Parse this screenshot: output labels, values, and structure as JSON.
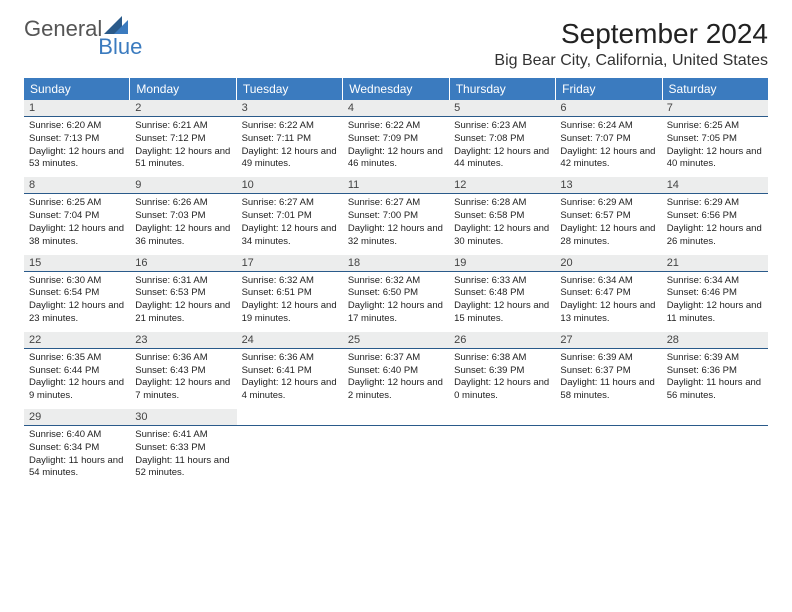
{
  "brand": {
    "part1": "General",
    "part2": "Blue"
  },
  "title": "September 2024",
  "location": "Big Bear City, California, United States",
  "colors": {
    "header_bg": "#3b7bbf",
    "band_bg": "#eceded",
    "rule": "#2a5a8a"
  },
  "weekdays": [
    "Sunday",
    "Monday",
    "Tuesday",
    "Wednesday",
    "Thursday",
    "Friday",
    "Saturday"
  ],
  "weeks": [
    [
      {
        "n": "1",
        "sunrise": "6:20 AM",
        "sunset": "7:13 PM",
        "dl": "12 hours and 53 minutes."
      },
      {
        "n": "2",
        "sunrise": "6:21 AM",
        "sunset": "7:12 PM",
        "dl": "12 hours and 51 minutes."
      },
      {
        "n": "3",
        "sunrise": "6:22 AM",
        "sunset": "7:11 PM",
        "dl": "12 hours and 49 minutes."
      },
      {
        "n": "4",
        "sunrise": "6:22 AM",
        "sunset": "7:09 PM",
        "dl": "12 hours and 46 minutes."
      },
      {
        "n": "5",
        "sunrise": "6:23 AM",
        "sunset": "7:08 PM",
        "dl": "12 hours and 44 minutes."
      },
      {
        "n": "6",
        "sunrise": "6:24 AM",
        "sunset": "7:07 PM",
        "dl": "12 hours and 42 minutes."
      },
      {
        "n": "7",
        "sunrise": "6:25 AM",
        "sunset": "7:05 PM",
        "dl": "12 hours and 40 minutes."
      }
    ],
    [
      {
        "n": "8",
        "sunrise": "6:25 AM",
        "sunset": "7:04 PM",
        "dl": "12 hours and 38 minutes."
      },
      {
        "n": "9",
        "sunrise": "6:26 AM",
        "sunset": "7:03 PM",
        "dl": "12 hours and 36 minutes."
      },
      {
        "n": "10",
        "sunrise": "6:27 AM",
        "sunset": "7:01 PM",
        "dl": "12 hours and 34 minutes."
      },
      {
        "n": "11",
        "sunrise": "6:27 AM",
        "sunset": "7:00 PM",
        "dl": "12 hours and 32 minutes."
      },
      {
        "n": "12",
        "sunrise": "6:28 AM",
        "sunset": "6:58 PM",
        "dl": "12 hours and 30 minutes."
      },
      {
        "n": "13",
        "sunrise": "6:29 AM",
        "sunset": "6:57 PM",
        "dl": "12 hours and 28 minutes."
      },
      {
        "n": "14",
        "sunrise": "6:29 AM",
        "sunset": "6:56 PM",
        "dl": "12 hours and 26 minutes."
      }
    ],
    [
      {
        "n": "15",
        "sunrise": "6:30 AM",
        "sunset": "6:54 PM",
        "dl": "12 hours and 23 minutes."
      },
      {
        "n": "16",
        "sunrise": "6:31 AM",
        "sunset": "6:53 PM",
        "dl": "12 hours and 21 minutes."
      },
      {
        "n": "17",
        "sunrise": "6:32 AM",
        "sunset": "6:51 PM",
        "dl": "12 hours and 19 minutes."
      },
      {
        "n": "18",
        "sunrise": "6:32 AM",
        "sunset": "6:50 PM",
        "dl": "12 hours and 17 minutes."
      },
      {
        "n": "19",
        "sunrise": "6:33 AM",
        "sunset": "6:48 PM",
        "dl": "12 hours and 15 minutes."
      },
      {
        "n": "20",
        "sunrise": "6:34 AM",
        "sunset": "6:47 PM",
        "dl": "12 hours and 13 minutes."
      },
      {
        "n": "21",
        "sunrise": "6:34 AM",
        "sunset": "6:46 PM",
        "dl": "12 hours and 11 minutes."
      }
    ],
    [
      {
        "n": "22",
        "sunrise": "6:35 AM",
        "sunset": "6:44 PM",
        "dl": "12 hours and 9 minutes."
      },
      {
        "n": "23",
        "sunrise": "6:36 AM",
        "sunset": "6:43 PM",
        "dl": "12 hours and 7 minutes."
      },
      {
        "n": "24",
        "sunrise": "6:36 AM",
        "sunset": "6:41 PM",
        "dl": "12 hours and 4 minutes."
      },
      {
        "n": "25",
        "sunrise": "6:37 AM",
        "sunset": "6:40 PM",
        "dl": "12 hours and 2 minutes."
      },
      {
        "n": "26",
        "sunrise": "6:38 AM",
        "sunset": "6:39 PM",
        "dl": "12 hours and 0 minutes."
      },
      {
        "n": "27",
        "sunrise": "6:39 AM",
        "sunset": "6:37 PM",
        "dl": "11 hours and 58 minutes."
      },
      {
        "n": "28",
        "sunrise": "6:39 AM",
        "sunset": "6:36 PM",
        "dl": "11 hours and 56 minutes."
      }
    ],
    [
      {
        "n": "29",
        "sunrise": "6:40 AM",
        "sunset": "6:34 PM",
        "dl": "11 hours and 54 minutes."
      },
      {
        "n": "30",
        "sunrise": "6:41 AM",
        "sunset": "6:33 PM",
        "dl": "11 hours and 52 minutes."
      },
      null,
      null,
      null,
      null,
      null
    ]
  ],
  "labels": {
    "sunrise": "Sunrise:",
    "sunset": "Sunset:",
    "daylight": "Daylight:"
  }
}
